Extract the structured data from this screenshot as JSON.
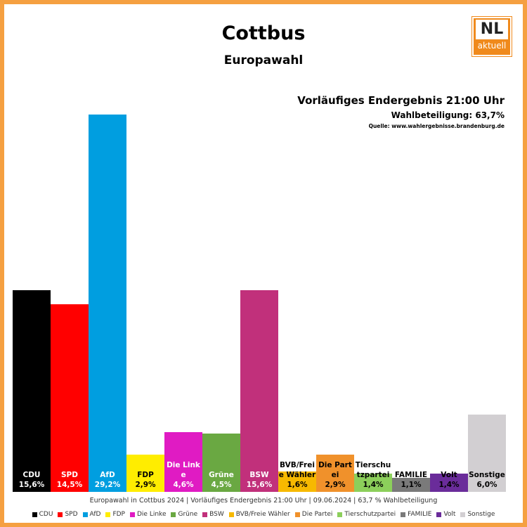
{
  "chart_data": {
    "type": "bar",
    "title": "Cottbus",
    "subtitle": "Europawahl",
    "result_heading": "Vorläufiges Endergebnis 21:00 Uhr",
    "turnout": "Wahlbeteiligung:  63,7%",
    "source": "Quelle: www.wahlergebnisse.brandenburg.de",
    "footer": "Europawahl in Cottbus 2024 | Vorläufiges Endergebnis 21:00 Uhr | 09.06.2024 | 63,7 % Wahlbeteiligung",
    "logo": {
      "top": "NL",
      "bottom": "aktuell"
    },
    "categories": [
      "CDU",
      "SPD",
      "AfD",
      "FDP",
      "Die Linke",
      "Grüne",
      "BSW",
      "BVB/Freie Wähler",
      "Die Partei",
      "Tierschutzpartei",
      "FAMILIE",
      "Volt",
      "Sonstige"
    ],
    "values": [
      15.6,
      14.5,
      29.2,
      2.9,
      4.6,
      4.5,
      15.6,
      1.6,
      2.9,
      1.4,
      1.1,
      1.4,
      6.0
    ],
    "value_labels": [
      "15,6%",
      "14,5%",
      "29,2%",
      "2,9%",
      "4,6%",
      "4,5%",
      "15,6%",
      "1,6%",
      "2,9%",
      "1,4%",
      "1,1%",
      "1,4%",
      "6,0%"
    ],
    "colors": [
      "#000000",
      "#ff0000",
      "#009ee0",
      "#ffed00",
      "#e01bc3",
      "#6aa842",
      "#c1307b",
      "#f7b900",
      "#f0912b",
      "#8ccf5b",
      "#7a7a7a",
      "#6a2c9a",
      "#d2cfd2"
    ],
    "label_colors": [
      "#ffffff",
      "#ffffff",
      "#ffffff",
      "#000000",
      "#ffffff",
      "#ffffff",
      "#ffffff",
      "#000000",
      "#000000",
      "#000000",
      "#000000",
      "#000000",
      "#000000"
    ],
    "legend": true
  }
}
